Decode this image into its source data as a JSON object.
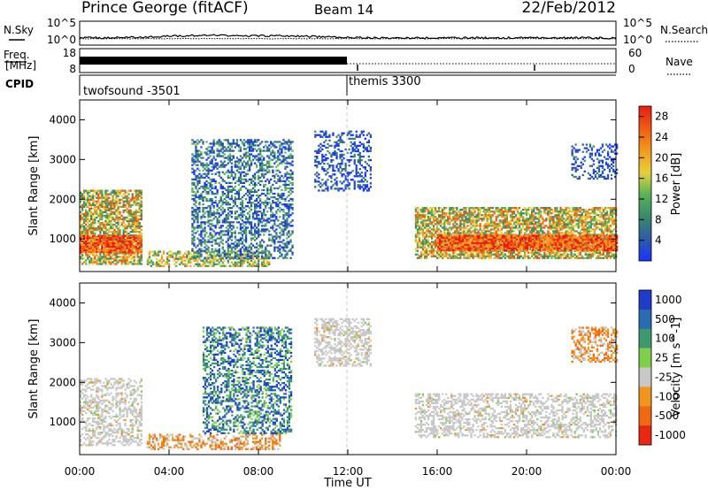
{
  "header": {
    "title": "Prince George (fitACF)",
    "beam": "Beam 14",
    "date": "22/Feb/2012"
  },
  "noise_panel": {
    "left_label": "N.Sky",
    "right_label": "N.Search",
    "left_ticks": [
      "10^5",
      "10^0"
    ],
    "right_ticks": [
      "10^5",
      "10^0"
    ]
  },
  "freq_panel": {
    "left_label_1": "Freq.",
    "left_label_2": "[MHz]",
    "left_ticks": [
      "18",
      "8"
    ],
    "right_label": "Nave",
    "right_ticks": [
      "60",
      "0"
    ]
  },
  "cpid_panel": {
    "label": "CPID",
    "modes": [
      {
        "name": "twofsound -3501",
        "start_hour": 0,
        "end_hour": 12
      },
      {
        "name": "themis 3300",
        "start_hour": 12,
        "end_hour": 24
      }
    ]
  },
  "colors": {
    "power_scale": [
      "#1a33ff",
      "#2e5aa8",
      "#3a8a6a",
      "#59b35a",
      "#e6d23a",
      "#f29a1f",
      "#f05a14",
      "#e61e10"
    ],
    "velocity_scale": [
      "#1e3cc8",
      "#2a6cb0",
      "#3e9a6e",
      "#7ed04a",
      "#c8c8c8",
      "#f0961e",
      "#f06a14",
      "#e62814"
    ],
    "ground_scatter": "#c8c8c8",
    "noise_trace": "#000000"
  },
  "chart_data": [
    {
      "type": "heatmap",
      "name": "power",
      "xlabel": "Time UT",
      "ylabel": "Slant Range [km]",
      "xlim": [
        0,
        24
      ],
      "ylim": [
        180,
        4500
      ],
      "x_ticks": [
        "00:00",
        "04:00",
        "08:00",
        "12:00",
        "16:00",
        "20:00",
        "00:00"
      ],
      "y_ticks": [
        "1000",
        "2000",
        "3000",
        "4000"
      ],
      "colorbar_label": "Power [dB]",
      "colorbar_ticks": [
        "4",
        "8",
        "12",
        "16",
        "20",
        "24",
        "28"
      ],
      "colorbar_range": [
        0,
        30
      ],
      "regions": [
        {
          "t0": 0.0,
          "t1": 2.8,
          "r0": 350,
          "r1": 2200,
          "level": "mid-high"
        },
        {
          "t0": 0.0,
          "t1": 2.8,
          "r0": 650,
          "r1": 1100,
          "level": "high"
        },
        {
          "t0": 3.0,
          "t1": 8.5,
          "r0": 300,
          "r1": 700,
          "level": "mid"
        },
        {
          "t0": 5.0,
          "t1": 9.5,
          "r0": 500,
          "r1": 3500,
          "level": "low-mid"
        },
        {
          "t0": 10.5,
          "t1": 13.0,
          "r0": 2200,
          "r1": 3700,
          "level": "low"
        },
        {
          "t0": 15.0,
          "t1": 24.0,
          "r0": 500,
          "r1": 1800,
          "level": "mid-high"
        },
        {
          "t0": 16.0,
          "t1": 24.0,
          "r0": 700,
          "r1": 1100,
          "level": "high"
        },
        {
          "t0": 22.0,
          "t1": 24.0,
          "r0": 2500,
          "r1": 3400,
          "level": "low"
        }
      ]
    },
    {
      "type": "heatmap",
      "name": "velocity",
      "xlabel": "Time UT",
      "ylabel": "Slant Range [km]",
      "xlim": [
        0,
        24
      ],
      "ylim": [
        180,
        4500
      ],
      "x_ticks": [
        "00:00",
        "04:00",
        "08:00",
        "12:00",
        "16:00",
        "20:00",
        "00:00"
      ],
      "y_ticks": [
        "1000",
        "2000",
        "3000",
        "4000"
      ],
      "colorbar_label": "Velocity [m s^-1]",
      "colorbar_ticks": [
        "1000",
        "500",
        "100",
        "25",
        "-25",
        "-100",
        "-500",
        "-1000"
      ],
      "regions": [
        {
          "t0": 0.0,
          "t1": 2.8,
          "r0": 400,
          "r1": 2100,
          "level": "ground"
        },
        {
          "t0": 3.0,
          "t1": 9.0,
          "r0": 300,
          "r1": 700,
          "level": "negative"
        },
        {
          "t0": 5.5,
          "t1": 9.5,
          "r0": 700,
          "r1": 3400,
          "level": "positive"
        },
        {
          "t0": 10.5,
          "t1": 13.0,
          "r0": 2400,
          "r1": 3600,
          "level": "ground"
        },
        {
          "t0": 15.0,
          "t1": 24.0,
          "r0": 600,
          "r1": 1700,
          "level": "ground"
        },
        {
          "t0": 22.0,
          "t1": 24.0,
          "r0": 2500,
          "r1": 3400,
          "level": "negative"
        }
      ]
    }
  ]
}
